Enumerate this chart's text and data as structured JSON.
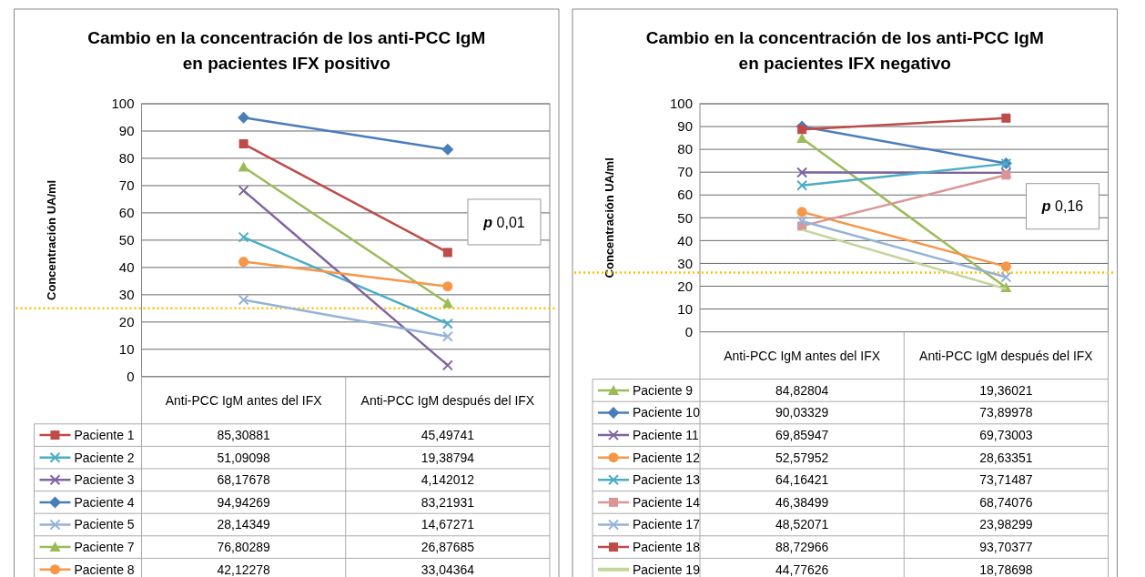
{
  "chart_data": [
    {
      "type": "line",
      "title": "Cambio en la concentración de los anti-PCC IgM\nen pacientes IFX positivo",
      "ylabel": "Concentración UA/ml",
      "categories": [
        "Anti-PCC IgM antes del IFX",
        "Anti-PCC IgM después del IFX"
      ],
      "ylim": [
        0,
        100
      ],
      "yticks": [
        0,
        10,
        20,
        30,
        40,
        50,
        60,
        70,
        80,
        90,
        100
      ],
      "grid": "y",
      "legend": "bottom",
      "annotations": [
        "p 0,01"
      ],
      "ref_lines": [
        {
          "axis": "y",
          "value": 25,
          "color": "#ffc000",
          "line_style": "dotted"
        }
      ],
      "series": [
        {
          "name": "Paciente 1",
          "color": "#be4b48",
          "marker": "square",
          "values": [
            85.30881,
            45.49741
          ],
          "value_labels": [
            "85,30881",
            "45,49741"
          ]
        },
        {
          "name": "Paciente 2",
          "color": "#4bacc6",
          "marker": "cross",
          "values": [
            51.09098,
            19.38794
          ],
          "value_labels": [
            "51,09098",
            "19,38794"
          ]
        },
        {
          "name": "Paciente 3",
          "color": "#7f63a1",
          "marker": "cross",
          "values": [
            68.17678,
            4.142012
          ],
          "value_labels": [
            "68,17678",
            "4,142012"
          ]
        },
        {
          "name": "Paciente 4",
          "color": "#4a7ebb",
          "marker": "diamond",
          "values": [
            94.94269,
            83.21931
          ],
          "value_labels": [
            "94,94269",
            "83,21931"
          ]
        },
        {
          "name": "Paciente 5",
          "color": "#95b3d7",
          "marker": "cross",
          "values": [
            28.14349,
            14.67271
          ],
          "value_labels": [
            "28,14349",
            "14,67271"
          ]
        },
        {
          "name": "Paciente 7",
          "color": "#9bbb59",
          "marker": "triangle",
          "values": [
            76.80289,
            26.87685
          ],
          "value_labels": [
            "76,80289",
            "26,87685"
          ]
        },
        {
          "name": "Paciente 8",
          "color": "#f79646",
          "marker": "circle",
          "values": [
            42.12278,
            33.04364
          ],
          "value_labels": [
            "42,12278",
            "33,04364"
          ]
        }
      ]
    },
    {
      "type": "line",
      "title": "Cambio en la concentración de los anti-PCC IgM\nen pacientes IFX negativo",
      "ylabel": "Concentración UA/ml",
      "categories": [
        "Anti-PCC IgM antes del IFX",
        "Anti-PCC IgM después del IFX"
      ],
      "ylim": [
        0,
        100
      ],
      "yticks": [
        0,
        10,
        20,
        30,
        40,
        50,
        60,
        70,
        80,
        90,
        100
      ],
      "grid": "y",
      "legend": "bottom",
      "annotations": [
        "p 0,16"
      ],
      "ref_lines": [
        {
          "axis": "y",
          "value": 26,
          "color": "#ffc000",
          "line_style": "dotted"
        }
      ],
      "series": [
        {
          "name": "Paciente 9",
          "color": "#9bbb59",
          "marker": "triangle",
          "values": [
            84.82804,
            19.36021
          ],
          "value_labels": [
            "84,82804",
            "19,36021"
          ]
        },
        {
          "name": "Paciente 10",
          "color": "#4a7ebb",
          "marker": "diamond",
          "values": [
            90.03329,
            73.89978
          ],
          "value_labels": [
            "90,03329",
            "73,89978"
          ]
        },
        {
          "name": "Paciente 11",
          "color": "#7f63a1",
          "marker": "cross",
          "values": [
            69.85947,
            69.73003
          ],
          "value_labels": [
            "69,85947",
            "69,73003"
          ]
        },
        {
          "name": "Paciente 12",
          "color": "#f79646",
          "marker": "circle",
          "values": [
            52.57952,
            28.63351
          ],
          "value_labels": [
            "52,57952",
            "28,63351"
          ]
        },
        {
          "name": "Paciente 13",
          "color": "#4bacc6",
          "marker": "cross",
          "values": [
            64.16421,
            73.71487
          ],
          "value_labels": [
            "64,16421",
            "73,71487"
          ]
        },
        {
          "name": "Paciente 14",
          "color": "#d99694",
          "marker": "square",
          "values": [
            46.38499,
            68.74076
          ],
          "value_labels": [
            "46,38499",
            "68,74076"
          ]
        },
        {
          "name": "Paciente 17",
          "color": "#95b3d7",
          "marker": "cross",
          "values": [
            48.52071,
            23.98299
          ],
          "value_labels": [
            "48,52071",
            "23,98299"
          ]
        },
        {
          "name": "Paciente 18",
          "color": "#be4b48",
          "marker": "square",
          "values": [
            88.72966,
            93.70377
          ],
          "value_labels": [
            "88,72966",
            "93,70377"
          ]
        },
        {
          "name": "Paciente 19",
          "color": "#c3d69b",
          "marker": "none",
          "values": [
            44.77626,
            18.78698
          ],
          "value_labels": [
            "44,77626",
            "18,78698"
          ]
        }
      ]
    }
  ]
}
